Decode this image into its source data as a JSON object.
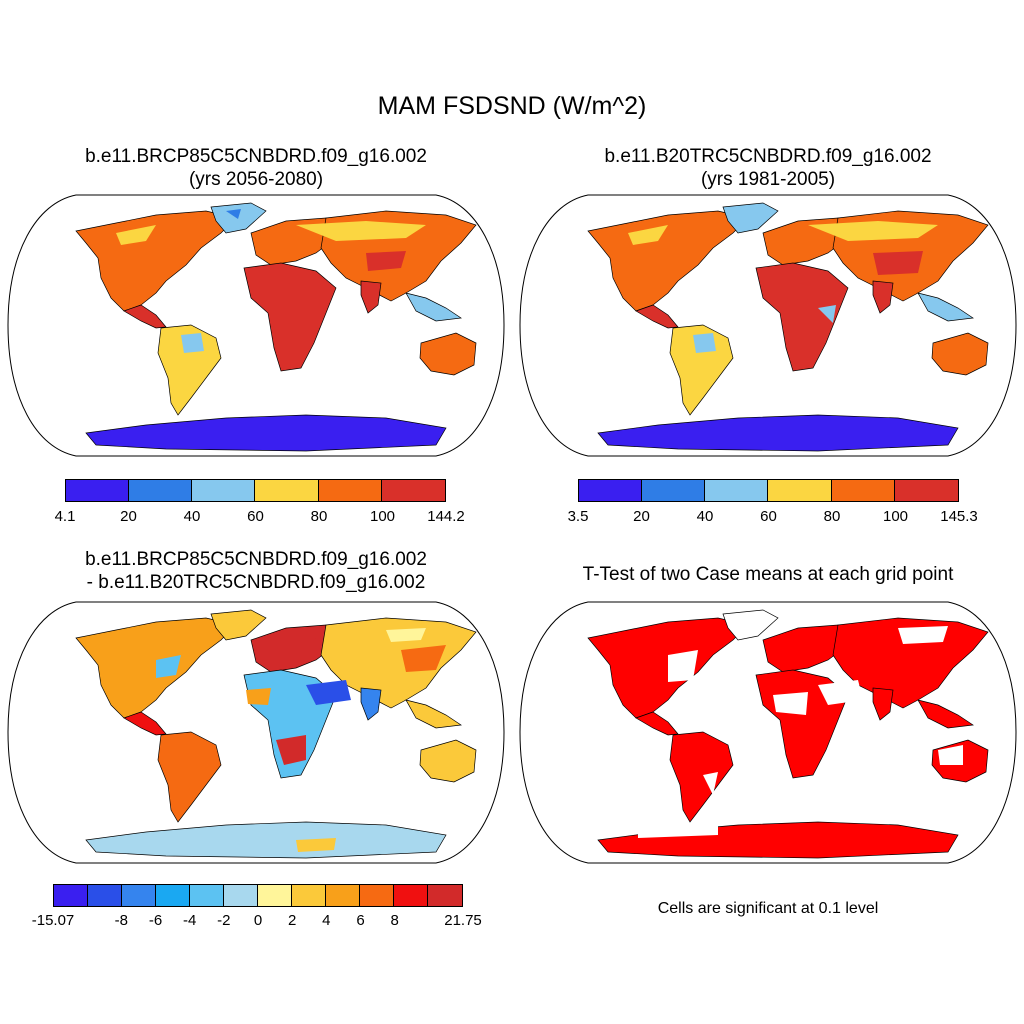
{
  "title": "MAM FSDSND (W/m^2)",
  "panels": [
    {
      "id": "p1",
      "title_line1": "b.e11.BRCP85C5CNBDRD.f09_g16.002",
      "title_line2": "(yrs 2056-2080)",
      "colorbar": {
        "colors": [
          "#3a1ff0",
          "#2f7de6",
          "#86c8ee",
          "#fbd641",
          "#f56a12",
          "#d9302a"
        ],
        "labels": [
          "4.1",
          "20",
          "40",
          "60",
          "80",
          "100",
          "144.2"
        ]
      }
    },
    {
      "id": "p2",
      "title_line1": "b.e11.B20TRC5CNBDRD.f09_g16.002",
      "title_line2": "(yrs 1981-2005)",
      "colorbar": {
        "colors": [
          "#3a1ff0",
          "#2f7de6",
          "#86c8ee",
          "#fbd641",
          "#f56a12",
          "#d9302a"
        ],
        "labels": [
          "3.5",
          "20",
          "40",
          "60",
          "80",
          "100",
          "145.3"
        ]
      }
    },
    {
      "id": "p3",
      "title_line1": "b.e11.BRCP85C5CNBDRD.f09_g16.002",
      "title_line2": "- b.e11.B20TRC5CNBDRD.f09_g16.002",
      "colorbar": {
        "colors": [
          "#3a1ff0",
          "#2a4fe8",
          "#3584ee",
          "#1aa8f2",
          "#5cc2f2",
          "#a8d8ee",
          "#fff59a",
          "#fbc93a",
          "#f8a01a",
          "#f66a12",
          "#f01010",
          "#d22a2a"
        ],
        "labels": [
          "-15.07",
          "-8",
          "-6",
          "-4",
          "-2",
          "0",
          "2",
          "4",
          "6",
          "8",
          "21.75"
        ]
      }
    },
    {
      "id": "p4",
      "title_line1": "T-Test of two Case means at each grid point",
      "note": "Cells are significant at 0.1 level",
      "sig_color": "#ff0000"
    }
  ]
}
